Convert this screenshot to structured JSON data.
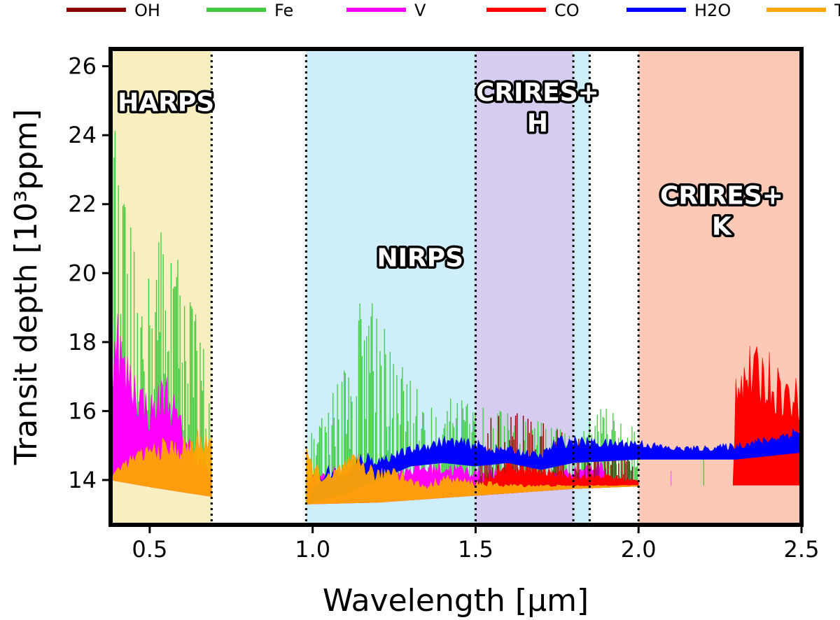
{
  "chart_data": {
    "type": "line",
    "title": "",
    "xlabel": "Wavelength [μm]",
    "ylabel": "Transit depth [10³ppm]",
    "xlim": [
      0.38,
      2.5
    ],
    "ylim": [
      12.7,
      26.5
    ],
    "grid": false,
    "legend_position": "top",
    "x_ticks": [
      {
        "value": 0.5,
        "label": "0.5"
      },
      {
        "value": 1.0,
        "label": "1.0"
      },
      {
        "value": 1.5,
        "label": "1.5"
      },
      {
        "value": 2.0,
        "label": "2.0"
      },
      {
        "value": 2.5,
        "label": "2.5"
      }
    ],
    "y_ticks": [
      {
        "value": 14,
        "label": "14"
      },
      {
        "value": 16,
        "label": "16"
      },
      {
        "value": 18,
        "label": "18"
      },
      {
        "value": 20,
        "label": "20"
      },
      {
        "value": 22,
        "label": "22"
      },
      {
        "value": 24,
        "label": "24"
      },
      {
        "value": 26,
        "label": "26"
      }
    ],
    "bands": [
      {
        "name": "HARPS",
        "range": [
          0.38,
          0.69
        ],
        "color": "#f9eebf"
      },
      {
        "name": "NIRPS",
        "range": [
          0.98,
          1.85
        ],
        "color": "#cfeefb"
      },
      {
        "name": "CRIRES+ H",
        "range": [
          1.5,
          1.8
        ],
        "color": "#d6ccf0"
      },
      {
        "name": "CRIRES+ K",
        "range": [
          2.0,
          2.5
        ],
        "color": "#fbc9b6"
      }
    ],
    "dividers": [
      0.69,
      0.98,
      1.5,
      1.8,
      1.85,
      2.0
    ],
    "band_labels": [
      {
        "lines": [
          "HARPS"
        ],
        "x": 0.55,
        "y": 24.7
      },
      {
        "lines": [
          "NIRPS"
        ],
        "x": 1.33,
        "y": 20.2
      },
      {
        "lines": [
          "CRIRES+",
          "H"
        ],
        "x": 1.69,
        "y": 25.0
      },
      {
        "lines": [
          "CRIRES+",
          "K"
        ],
        "x": 2.255,
        "y": 22.0
      }
    ],
    "series": [
      {
        "name": "OH",
        "color": "#8b0000"
      },
      {
        "name": "Fe",
        "color": "#3ecb3e"
      },
      {
        "name": "V",
        "color": "#ff00ff"
      },
      {
        "name": "CO",
        "color": "#ff0000"
      },
      {
        "name": "H2O",
        "color": "#0000ff"
      },
      {
        "name": "TiO",
        "color": "#ffa500"
      }
    ],
    "baseline": [
      [
        0.38,
        14.0
      ],
      [
        0.5,
        13.8
      ],
      [
        0.6,
        13.65
      ],
      [
        0.69,
        13.52
      ],
      [
        0.98,
        13.3
      ],
      [
        1.2,
        13.35
      ],
      [
        1.5,
        13.55
      ],
      [
        1.8,
        13.75
      ],
      [
        2.0,
        13.82
      ],
      [
        2.3,
        13.85
      ],
      [
        2.5,
        13.85
      ]
    ],
    "envelopes": {
      "TiO": [
        [
          0.38,
          14.0
        ],
        [
          0.4,
          14.4
        ],
        [
          0.45,
          14.8
        ],
        [
          0.5,
          15.1
        ],
        [
          0.55,
          15.25
        ],
        [
          0.6,
          15.2
        ],
        [
          0.65,
          15.5
        ],
        [
          0.69,
          15.7
        ],
        [
          0.98,
          15.0
        ],
        [
          1.0,
          14.6
        ],
        [
          1.05,
          14.2
        ],
        [
          1.1,
          14.7
        ],
        [
          1.15,
          14.8
        ],
        [
          1.2,
          14.3
        ],
        [
          1.25,
          14.6
        ],
        [
          1.3,
          14.1
        ],
        [
          1.35,
          13.9
        ],
        [
          1.4,
          14.2
        ],
        [
          1.5,
          14.0
        ],
        [
          1.6,
          13.9
        ],
        [
          1.8,
          13.85
        ],
        [
          2.0,
          13.85
        ],
        [
          2.5,
          13.85
        ]
      ],
      "V": [
        [
          0.38,
          14.1
        ],
        [
          0.39,
          20.0
        ],
        [
          0.42,
          18.0
        ],
        [
          0.45,
          17.5
        ],
        [
          0.5,
          16.5
        ],
        [
          0.55,
          17.3
        ],
        [
          0.6,
          15.8
        ],
        [
          0.65,
          14.8
        ],
        [
          0.69,
          14.2
        ],
        [
          0.98,
          14.2
        ],
        [
          1.1,
          14.5
        ],
        [
          1.2,
          14.4
        ],
        [
          1.3,
          14.6
        ],
        [
          1.4,
          14.6
        ],
        [
          1.5,
          14.4
        ],
        [
          1.7,
          14.2
        ],
        [
          1.9,
          14.6
        ],
        [
          2.1,
          14.4
        ],
        [
          2.5,
          14.2
        ]
      ],
      "H2O": [
        [
          0.98,
          13.5
        ],
        [
          1.05,
          14.5
        ],
        [
          1.1,
          14.2
        ],
        [
          1.15,
          14.9
        ],
        [
          1.2,
          14.7
        ],
        [
          1.3,
          15.0
        ],
        [
          1.4,
          15.3
        ],
        [
          1.5,
          15.2
        ],
        [
          1.55,
          15.0
        ],
        [
          1.6,
          15.0
        ],
        [
          1.65,
          14.9
        ],
        [
          1.7,
          14.8
        ],
        [
          1.75,
          15.3
        ],
        [
          1.8,
          15.3
        ],
        [
          1.9,
          15.2
        ],
        [
          2.0,
          15.2
        ],
        [
          2.1,
          15.0
        ],
        [
          2.2,
          15.0
        ],
        [
          2.3,
          15.1
        ],
        [
          2.4,
          15.3
        ],
        [
          2.5,
          15.6
        ]
      ],
      "H2O_low": [
        [
          0.98,
          13.3
        ],
        [
          1.1,
          13.6
        ],
        [
          1.2,
          14.0
        ],
        [
          1.3,
          14.4
        ],
        [
          1.4,
          14.5
        ],
        [
          1.5,
          14.4
        ],
        [
          1.6,
          14.5
        ],
        [
          1.7,
          14.3
        ],
        [
          1.8,
          14.5
        ],
        [
          2.0,
          14.6
        ],
        [
          2.3,
          14.6
        ],
        [
          2.5,
          14.8
        ]
      ],
      "CO": [
        [
          1.5,
          13.8
        ],
        [
          1.55,
          14.3
        ],
        [
          1.6,
          14.6
        ],
        [
          1.7,
          14.4
        ],
        [
          1.8,
          14.2
        ],
        [
          1.9,
          14.2
        ],
        [
          2.0,
          14.0
        ],
        [
          2.29,
          14.0
        ],
        [
          2.3,
          18.0
        ],
        [
          2.4,
          17.8
        ],
        [
          2.45,
          17.2
        ],
        [
          2.5,
          16.9
        ]
      ],
      "OH": [
        [
          1.5,
          14.0
        ],
        [
          1.55,
          15.9
        ],
        [
          1.6,
          16.0
        ],
        [
          1.7,
          15.8
        ],
        [
          1.8,
          15.4
        ],
        [
          1.9,
          15.0
        ],
        [
          2.0,
          14.6
        ],
        [
          2.2,
          14.4
        ],
        [
          2.5,
          14.2
        ]
      ],
      "Fe": [
        [
          0.38,
          14.0
        ],
        [
          0.39,
          25.0
        ],
        [
          0.42,
          22.5
        ],
        [
          0.45,
          21.0
        ],
        [
          0.5,
          20.0
        ],
        [
          0.55,
          22.5
        ],
        [
          0.6,
          20.0
        ],
        [
          0.65,
          19.0
        ],
        [
          0.69,
          17.0
        ],
        [
          0.98,
          15.0
        ],
        [
          1.05,
          16.5
        ],
        [
          1.1,
          17.5
        ],
        [
          1.15,
          19.5
        ],
        [
          1.2,
          20.0
        ],
        [
          1.25,
          18.0
        ],
        [
          1.3,
          17.0
        ],
        [
          1.4,
          16.5
        ],
        [
          1.5,
          16.2
        ],
        [
          1.6,
          16.0
        ],
        [
          1.7,
          15.8
        ],
        [
          1.8,
          15.4
        ],
        [
          1.9,
          16.2
        ],
        [
          2.0,
          15.6
        ],
        [
          2.2,
          15.2
        ],
        [
          2.5,
          14.8
        ]
      ]
    }
  }
}
